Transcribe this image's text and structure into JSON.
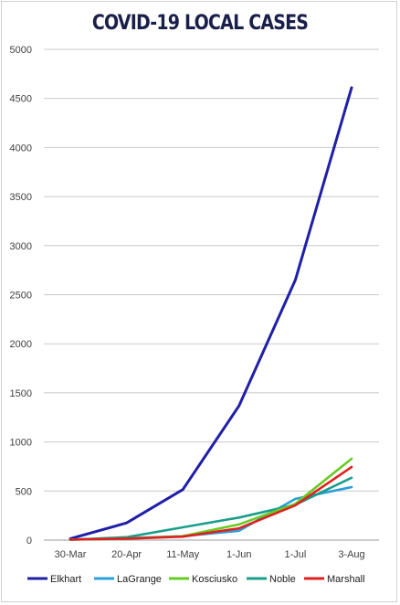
{
  "chart_data": {
    "type": "line",
    "title": "COVID-19 LOCAL CASES",
    "xlabel": "",
    "ylabel": "",
    "categories": [
      "30-Mar",
      "20-Apr",
      "11-May",
      "1-Jun",
      "1-Jul",
      "3-Aug"
    ],
    "ylim": [
      0,
      5000
    ],
    "yticks": [
      0,
      500,
      1000,
      1500,
      2000,
      2500,
      3000,
      3500,
      4000,
      4500,
      5000
    ],
    "grid": true,
    "legend_position": "bottom",
    "series": [
      {
        "name": "Elkhart",
        "color": "#1f1fa8",
        "values": [
          15,
          175,
          515,
          1370,
          2650,
          4610
        ]
      },
      {
        "name": "LaGrange",
        "color": "#2a9fd8",
        "values": [
          5,
          20,
          40,
          95,
          420,
          540
        ]
      },
      {
        "name": "Kosciusko",
        "color": "#66cc22",
        "values": [
          5,
          15,
          40,
          160,
          370,
          830
        ]
      },
      {
        "name": "Noble",
        "color": "#1a9e8a",
        "values": [
          5,
          30,
          130,
          230,
          360,
          635
        ]
      },
      {
        "name": "Marshall",
        "color": "#e02020",
        "values": [
          5,
          15,
          35,
          120,
          355,
          745
        ]
      }
    ]
  }
}
